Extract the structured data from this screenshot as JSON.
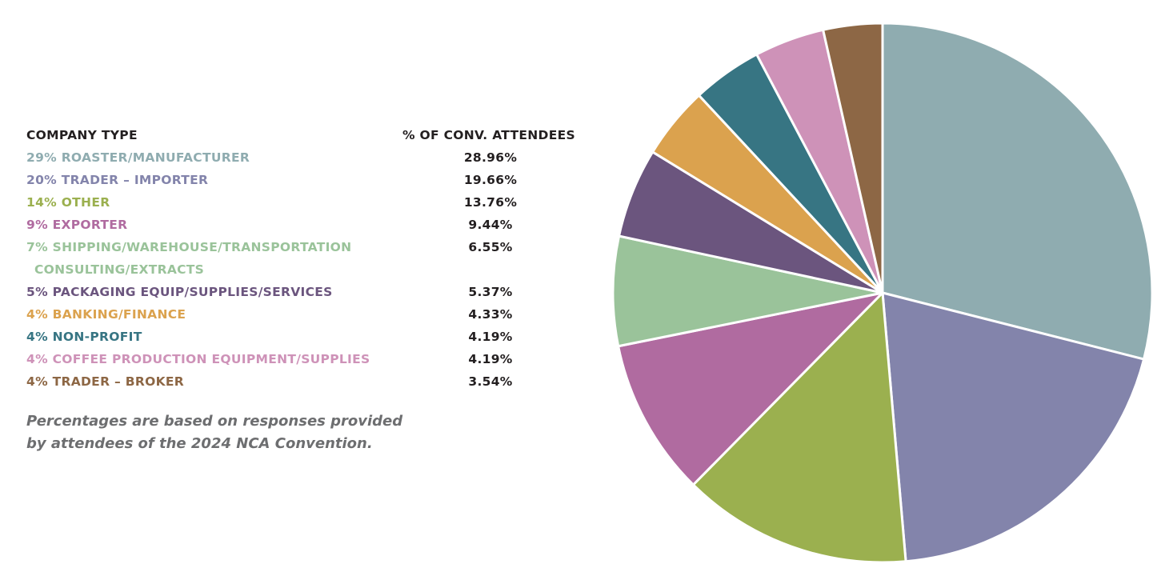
{
  "chart_data": {
    "type": "pie",
    "start": "top, clockwise",
    "header": {
      "category": "COMPANY TYPE",
      "value": "% OF CONV. ATTENDEES"
    },
    "slices": [
      {
        "label": "29% ROASTER/MANUFACTURER",
        "value": 28.96,
        "value_label": "28.96%",
        "color": "#8FACB0"
      },
      {
        "label": "20% TRADER – IMPORTER",
        "value": 19.66,
        "value_label": "19.66%",
        "color": "#8384AB"
      },
      {
        "label": "14% OTHER",
        "value": 13.76,
        "value_label": "13.76%",
        "color": "#9BB04F"
      },
      {
        "label": "9% EXPORTER",
        "value": 9.44,
        "value_label": "9.44%",
        "color": "#B06BA0"
      },
      {
        "label": "7% SHIPPING/WAREHOUSE/TRANSPORTATION",
        "label_cont": "CONSULTING/EXTRACTS",
        "value": 6.55,
        "value_label": "6.55%",
        "color": "#9AC39A"
      },
      {
        "label": "5% PACKAGING EQUIP/SUPPLIES/SERVICES",
        "value": 5.37,
        "value_label": "5.37%",
        "color": "#6B557E"
      },
      {
        "label": "4% BANKING/FINANCE",
        "value": 4.33,
        "value_label": "4.33%",
        "color": "#DBA24E"
      },
      {
        "label": "4% NON-PROFIT",
        "value": 4.19,
        "value_label": "4.19%",
        "color": "#377583"
      },
      {
        "label": "4% COFFEE PRODUCTION EQUIPMENT/SUPPLIES",
        "value": 4.19,
        "value_label": "4.19%",
        "color": "#CE92B8"
      },
      {
        "label": "4% TRADER – BROKER",
        "value": 3.54,
        "value_label": "3.54%",
        "color": "#8D6745"
      }
    ],
    "note": "Percentages are based on responses provided by attendees of the 2024 NCA Convention."
  }
}
